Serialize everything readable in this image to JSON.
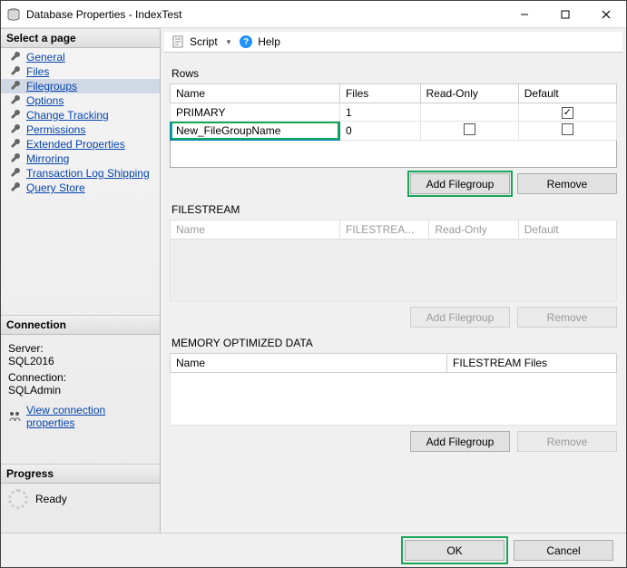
{
  "window": {
    "title": "Database Properties - IndexTest"
  },
  "sidebar": {
    "select_page_header": "Select a page",
    "items": [
      {
        "label": "General"
      },
      {
        "label": "Files"
      },
      {
        "label": "Filegroups",
        "selected": true
      },
      {
        "label": "Options"
      },
      {
        "label": "Change Tracking"
      },
      {
        "label": "Permissions"
      },
      {
        "label": "Extended Properties"
      },
      {
        "label": "Mirroring"
      },
      {
        "label": "Transaction Log Shipping"
      },
      {
        "label": "Query Store"
      }
    ],
    "connection_header": "Connection",
    "server_label": "Server:",
    "server_value": "SQL2016",
    "connection_label": "Connection:",
    "connection_value": "SQLAdmin",
    "view_conn_link": "View connection properties",
    "progress_header": "Progress",
    "progress_status": "Ready"
  },
  "toolbar": {
    "script": "Script",
    "help": "Help"
  },
  "rows_section": {
    "title": "Rows",
    "columns": [
      "Name",
      "Files",
      "Read-Only",
      "Default"
    ],
    "data": [
      {
        "name": "PRIMARY",
        "files": "1",
        "readonly_na": true,
        "default": true
      },
      {
        "name": "New_FileGroupName",
        "files": "0",
        "readonly": false,
        "default": false,
        "editing": true
      }
    ],
    "add": "Add Filegroup",
    "remove": "Remove"
  },
  "filestream_section": {
    "title": "FILESTREAM",
    "columns": [
      "Name",
      "FILESTREA...",
      "Read-Only",
      "Default"
    ],
    "add": "Add Filegroup",
    "remove": "Remove"
  },
  "memopt_section": {
    "title": "MEMORY OPTIMIZED DATA",
    "columns": [
      "Name",
      "FILESTREAM Files"
    ],
    "add": "Add Filegroup",
    "remove": "Remove"
  },
  "footer": {
    "ok": "OK",
    "cancel": "Cancel"
  },
  "colors": {
    "highlight": "#17a55a",
    "focus": "#0078d7",
    "link": "#0645ad"
  }
}
